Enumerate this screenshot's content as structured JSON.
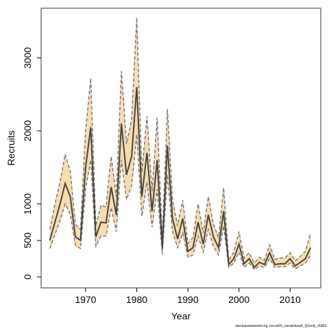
{
  "chart_data": {
    "type": "line",
    "xlabel": "Year",
    "ylabel": "Recruits",
    "footnote": "stockassessment.org, nscod15_nocatchmult_Q1only_r6363",
    "x": [
      1963,
      1964,
      1965,
      1966,
      1967,
      1968,
      1969,
      1970,
      1971,
      1972,
      1973,
      1974,
      1975,
      1976,
      1977,
      1978,
      1979,
      1980,
      1981,
      1982,
      1983,
      1984,
      1985,
      1986,
      1987,
      1988,
      1989,
      1990,
      1991,
      1992,
      1993,
      1994,
      1995,
      1996,
      1997,
      1998,
      1999,
      2000,
      2001,
      2002,
      2003,
      2004,
      2005,
      2006,
      2007,
      2008,
      2009,
      2010,
      2011,
      2012,
      2013,
      2014
    ],
    "values": [
      500,
      750,
      1000,
      1280,
      1100,
      550,
      500,
      1500,
      2050,
      550,
      750,
      740,
      1230,
      850,
      2100,
      1400,
      1650,
      2600,
      1100,
      1700,
      900,
      1600,
      400,
      1800,
      800,
      520,
      800,
      350,
      400,
      750,
      450,
      850,
      550,
      400,
      900,
      170,
      250,
      450,
      180,
      250,
      130,
      200,
      170,
      330,
      170,
      180,
      180,
      250,
      150,
      200,
      250,
      400
    ],
    "upper": [
      650,
      1000,
      1300,
      1680,
      1450,
      720,
      650,
      2000,
      2720,
      700,
      980,
      960,
      1650,
      1100,
      2820,
      1820,
      2150,
      3550,
      1430,
      2200,
      1170,
      2180,
      530,
      2300,
      1050,
      700,
      1050,
      460,
      540,
      1000,
      600,
      1100,
      720,
      540,
      1220,
      230,
      340,
      620,
      260,
      330,
      190,
      270,
      230,
      440,
      240,
      260,
      260,
      330,
      220,
      280,
      350,
      600
    ],
    "lower": [
      390,
      580,
      770,
      1000,
      860,
      430,
      390,
      1200,
      1600,
      420,
      560,
      560,
      950,
      620,
      1600,
      1060,
      1250,
      1950,
      830,
      1300,
      680,
      1200,
      310,
      1400,
      620,
      400,
      600,
      270,
      300,
      560,
      340,
      650,
      420,
      300,
      700,
      130,
      190,
      340,
      130,
      190,
      100,
      150,
      130,
      250,
      130,
      140,
      140,
      190,
      110,
      150,
      190,
      300
    ],
    "color": "#444444",
    "band_color": "#f8dcae",
    "bound_color": "#7a7a7a",
    "xlim": [
      1961.3,
      2016
    ],
    "ylim": [
      -150,
      3680
    ],
    "xticks": [
      1970,
      1980,
      1990,
      2000,
      2010
    ],
    "yticks": [
      0,
      500,
      1000,
      2000,
      3000
    ]
  }
}
